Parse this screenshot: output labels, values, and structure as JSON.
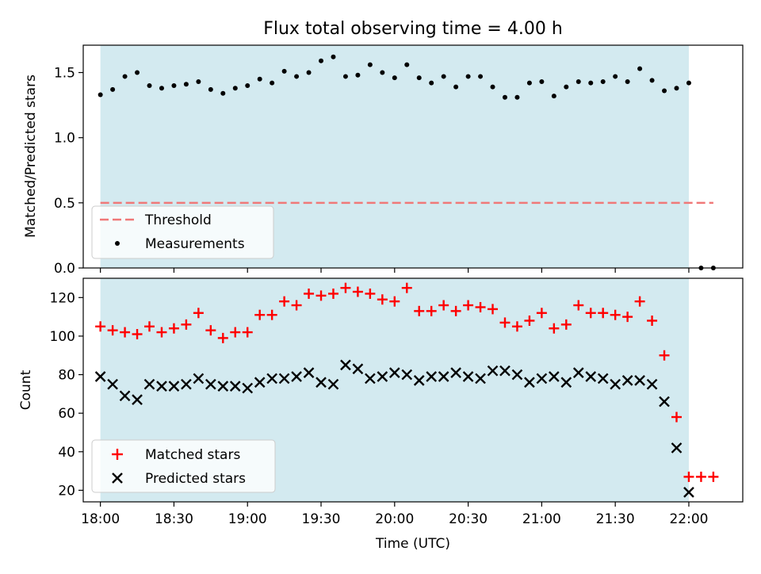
{
  "chart_data": [
    {
      "type": "scatter",
      "title": "Flux total observing time = 4.00 h",
      "xlabel": "",
      "ylabel": "Matched/Predicted stars",
      "ylim": [
        0,
        1.71
      ],
      "yticks": [
        "0.0",
        "0.5",
        "1.0",
        "1.5"
      ],
      "shaded_span": [
        "18:00",
        "22:00"
      ],
      "shade_color": "#d3eaf0",
      "threshold": {
        "name": "Threshold",
        "value": 0.5,
        "x": [
          "18:00",
          "22:10"
        ],
        "color": "#f07878"
      },
      "series": [
        {
          "name": "Measurements",
          "marker": "dot",
          "color": "#000000",
          "x": [
            "18:00",
            "18:05",
            "18:10",
            "18:15",
            "18:20",
            "18:25",
            "18:30",
            "18:35",
            "18:40",
            "18:45",
            "18:50",
            "18:55",
            "19:00",
            "19:05",
            "19:10",
            "19:15",
            "19:20",
            "19:25",
            "19:30",
            "19:35",
            "19:40",
            "19:45",
            "19:50",
            "19:55",
            "20:00",
            "20:05",
            "20:10",
            "20:15",
            "20:20",
            "20:25",
            "20:30",
            "20:35",
            "20:40",
            "20:45",
            "20:50",
            "20:55",
            "21:00",
            "21:05",
            "21:10",
            "21:15",
            "21:20",
            "21:25",
            "21:30",
            "21:35",
            "21:40",
            "21:45",
            "21:50",
            "21:55",
            "22:00",
            "22:05",
            "22:10"
          ],
          "y": [
            1.33,
            1.37,
            1.47,
            1.5,
            1.4,
            1.38,
            1.4,
            1.41,
            1.43,
            1.37,
            1.34,
            1.38,
            1.4,
            1.45,
            1.42,
            1.51,
            1.47,
            1.5,
            1.59,
            1.62,
            1.47,
            1.48,
            1.56,
            1.5,
            1.46,
            1.56,
            1.46,
            1.42,
            1.47,
            1.39,
            1.47,
            1.47,
            1.39,
            1.31,
            1.31,
            1.42,
            1.43,
            1.32,
            1.39,
            1.43,
            1.42,
            1.43,
            1.47,
            1.43,
            1.53,
            1.44,
            1.36,
            1.38,
            1.42,
            0.0,
            0.0
          ]
        }
      ],
      "legend": {
        "placement": "lower-left",
        "entries": [
          "Threshold",
          "Measurements"
        ]
      }
    },
    {
      "type": "scatter",
      "title": "",
      "xlabel": "Time (UTC)",
      "ylabel": "Count",
      "ylim": [
        14,
        130
      ],
      "yticks": [
        "20",
        "40",
        "60",
        "80",
        "100",
        "120"
      ],
      "xlim": [
        "17:53",
        "22:22"
      ],
      "xticks": [
        "18:00",
        "18:30",
        "19:00",
        "19:30",
        "20:00",
        "20:30",
        "21:00",
        "21:30",
        "22:00"
      ],
      "shaded_span": [
        "18:00",
        "22:00"
      ],
      "shade_color": "#d3eaf0",
      "series": [
        {
          "name": "Matched stars",
          "marker": "plus",
          "color": "#ff0000",
          "x": [
            "18:00",
            "18:05",
            "18:10",
            "18:15",
            "18:20",
            "18:25",
            "18:30",
            "18:35",
            "18:40",
            "18:45",
            "18:50",
            "18:55",
            "19:00",
            "19:05",
            "19:10",
            "19:15",
            "19:20",
            "19:25",
            "19:30",
            "19:35",
            "19:40",
            "19:45",
            "19:50",
            "19:55",
            "20:00",
            "20:05",
            "20:10",
            "20:15",
            "20:20",
            "20:25",
            "20:30",
            "20:35",
            "20:40",
            "20:45",
            "20:50",
            "20:55",
            "21:00",
            "21:05",
            "21:10",
            "21:15",
            "21:20",
            "21:25",
            "21:30",
            "21:35",
            "21:40",
            "21:45",
            "21:50",
            "21:55",
            "22:00",
            "22:05",
            "22:10"
          ],
          "y": [
            105,
            103,
            102,
            101,
            105,
            102,
            104,
            106,
            112,
            103,
            99,
            102,
            102,
            111,
            111,
            118,
            116,
            122,
            121,
            122,
            125,
            123,
            122,
            119,
            118,
            125,
            113,
            113,
            116,
            113,
            116,
            115,
            114,
            107,
            105,
            108,
            112,
            104,
            106,
            116,
            112,
            112,
            111,
            110,
            118,
            108,
            90,
            58,
            27,
            27,
            27
          ]
        },
        {
          "name": "Predicted stars",
          "marker": "x",
          "color": "#000000",
          "x": [
            "18:00",
            "18:05",
            "18:10",
            "18:15",
            "18:20",
            "18:25",
            "18:30",
            "18:35",
            "18:40",
            "18:45",
            "18:50",
            "18:55",
            "19:00",
            "19:05",
            "19:10",
            "19:15",
            "19:20",
            "19:25",
            "19:30",
            "19:35",
            "19:40",
            "19:45",
            "19:50",
            "19:55",
            "20:00",
            "20:05",
            "20:10",
            "20:15",
            "20:20",
            "20:25",
            "20:30",
            "20:35",
            "20:40",
            "20:45",
            "20:50",
            "20:55",
            "21:00",
            "21:05",
            "21:10",
            "21:15",
            "21:20",
            "21:25",
            "21:30",
            "21:35",
            "21:40",
            "21:45",
            "21:50",
            "21:55",
            "22:00"
          ],
          "y": [
            79,
            75,
            69,
            67,
            75,
            74,
            74,
            75,
            78,
            75,
            74,
            74,
            73,
            76,
            78,
            78,
            79,
            81,
            76,
            75,
            85,
            83,
            78,
            79,
            81,
            80,
            77,
            79,
            79,
            81,
            79,
            78,
            82,
            82,
            80,
            76,
            78,
            79,
            76,
            81,
            79,
            78,
            75,
            77,
            77,
            75,
            66,
            42,
            19
          ]
        }
      ],
      "legend": {
        "placement": "lower-left",
        "entries": [
          "Matched stars",
          "Predicted stars"
        ]
      }
    }
  ]
}
